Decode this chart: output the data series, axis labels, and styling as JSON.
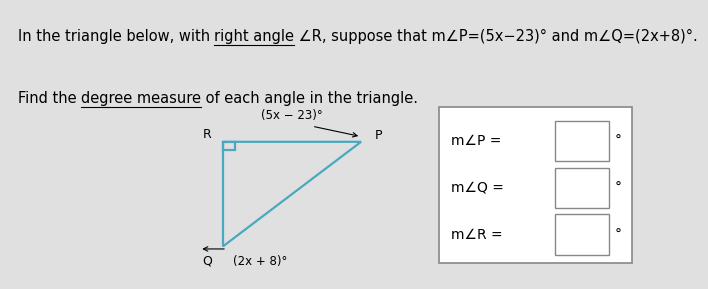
{
  "background_color": "#e0e0e0",
  "line1_parts": [
    [
      "In the triangle below, with ",
      false
    ],
    [
      "right angle",
      true
    ],
    [
      " ∠R, suppose that m∠P=(5x−23)° and m∠Q=(2x+8)°.",
      false
    ]
  ],
  "line2_parts": [
    [
      "Find the ",
      false
    ],
    [
      "degree measure",
      true
    ],
    [
      " of each angle in the triangle.",
      false
    ]
  ],
  "label_R": "R",
  "label_P": "P",
  "label_Q": "Q",
  "angle_P_label": "(5x − 23)°",
  "angle_Q_label": "(2x + 8)°",
  "box_labels": [
    "m∠P =",
    "m∠Q =",
    "m∠R ="
  ],
  "box_color": "#ffffff",
  "box_border_color": "#888888",
  "triangle_color": "#4aa8c0",
  "text_color": "#000000",
  "font_size_body": 10.5,
  "font_size_labels": 9,
  "font_size_box": 10,
  "font_size_angle": 8.5
}
